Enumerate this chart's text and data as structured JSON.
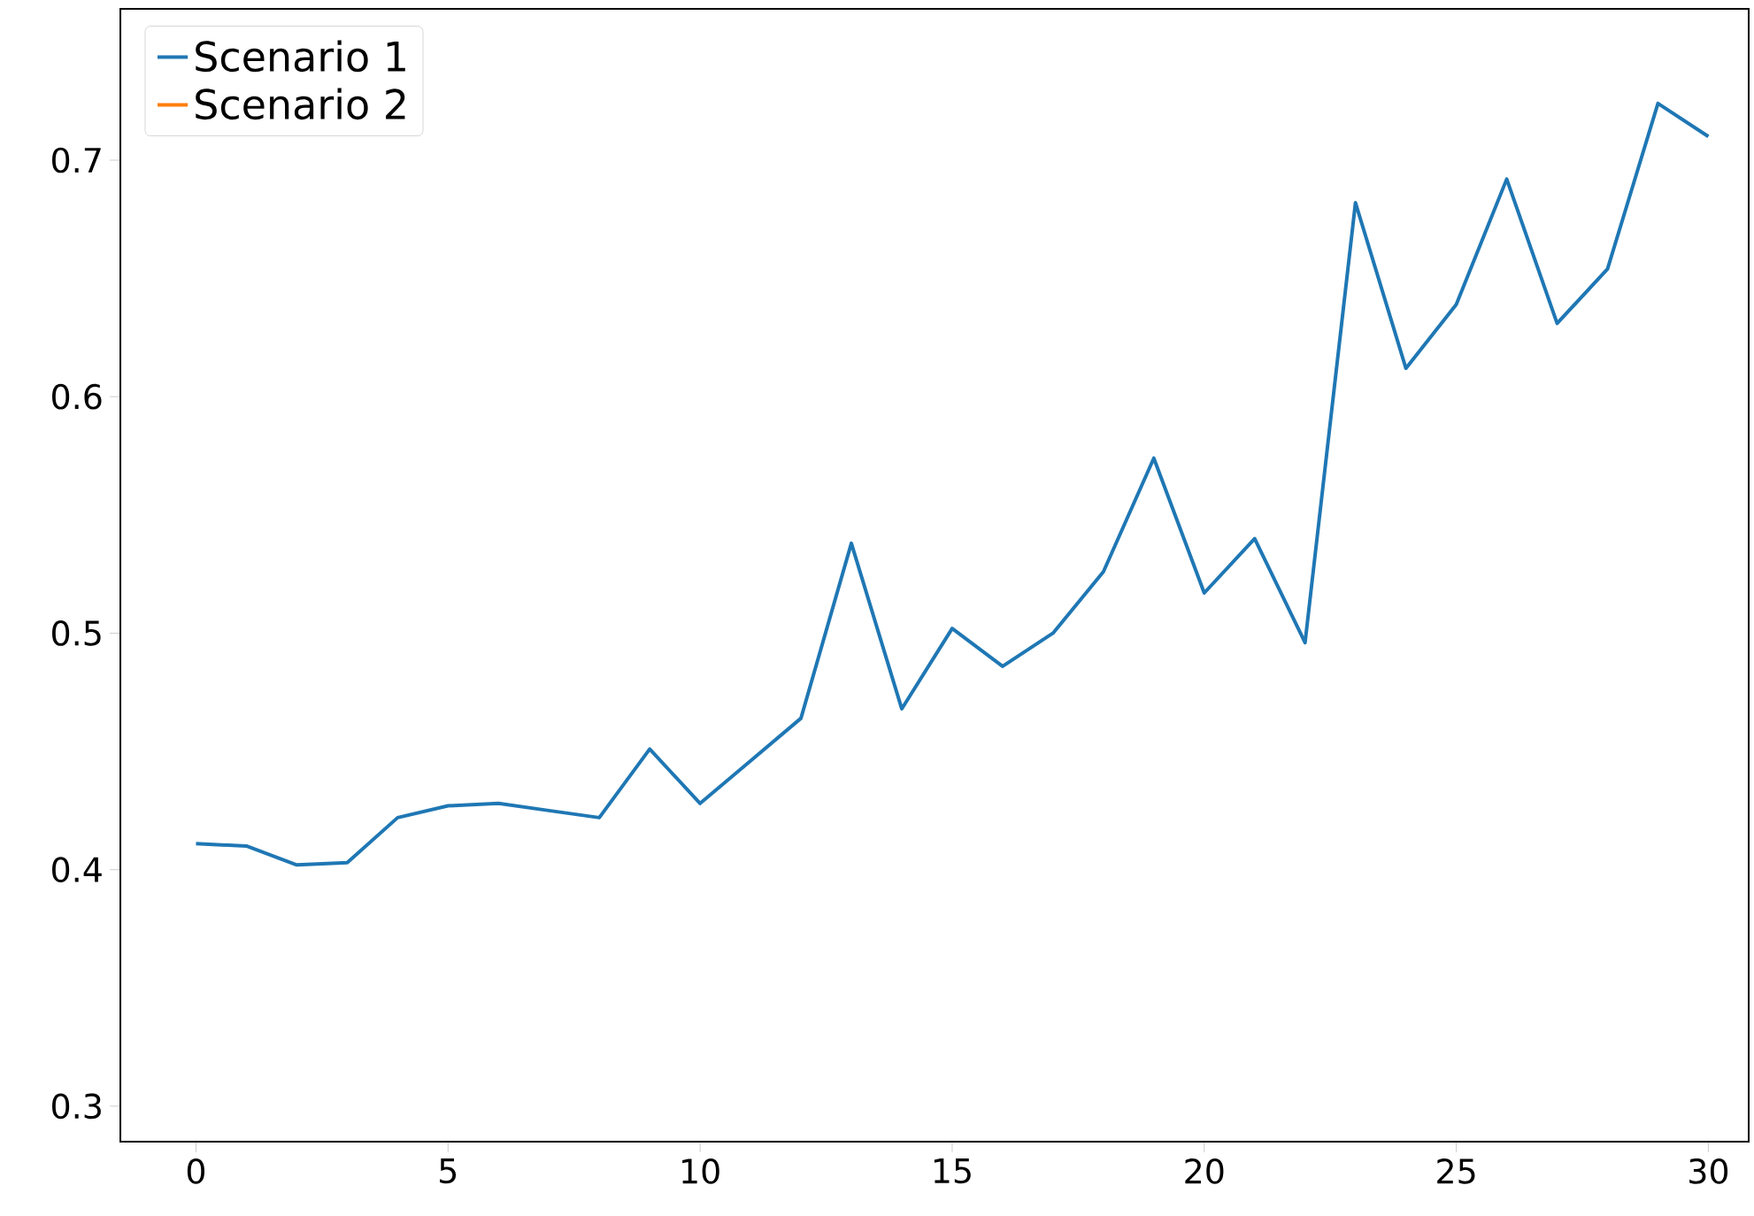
{
  "chart_data": {
    "type": "line",
    "x": [
      0,
      1,
      2,
      3,
      4,
      5,
      6,
      7,
      8,
      9,
      10,
      11,
      12,
      13,
      14,
      15,
      16,
      17,
      18,
      19,
      20,
      21,
      22,
      23,
      24,
      25,
      26,
      27,
      28,
      29,
      30
    ],
    "series": [
      {
        "name": "Scenario 1",
        "color": "#1f77b4",
        "values": [
          0.411,
          0.41,
          0.402,
          0.403,
          0.422,
          0.427,
          0.428,
          0.425,
          0.422,
          0.451,
          0.428,
          0.446,
          0.464,
          0.538,
          0.468,
          0.502,
          0.486,
          0.5,
          0.526,
          0.574,
          0.517,
          0.54,
          0.496,
          0.682,
          0.612,
          0.639,
          0.692,
          0.631,
          0.654,
          0.724,
          0.71
        ]
      },
      {
        "name": "Scenario 2",
        "color": "#ff7f0e",
        "values": [
          null,
          null,
          null,
          null,
          null,
          null,
          null,
          null,
          null,
          null,
          null,
          null,
          null,
          null,
          null,
          null,
          null,
          null,
          null,
          null,
          null,
          null,
          null,
          null,
          null,
          null,
          null,
          null,
          null,
          null,
          null
        ]
      }
    ],
    "xlim": [
      -1.5,
      30.8
    ],
    "ylim": [
      0.285,
      0.764
    ],
    "xticks": [
      0,
      5,
      10,
      15,
      20,
      25,
      30
    ],
    "yticks": [
      0.3,
      0.4,
      0.5,
      0.6,
      0.7
    ],
    "legend": "top left",
    "grid": false
  }
}
